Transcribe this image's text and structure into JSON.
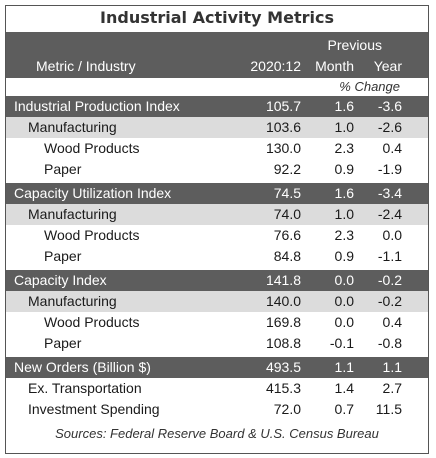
{
  "title": "Industrial Activity Metrics",
  "header": {
    "metric_col": "Metric / Industry",
    "period_col": "2020:12",
    "previous_label": "Previous",
    "month_col": "Month",
    "year_col": "Year",
    "change_note": "% Change"
  },
  "rows": [
    {
      "label": "Industrial Production Index",
      "value": "105.7",
      "month": "1.6",
      "year": "-3.6"
    },
    {
      "label": "Manufacturing",
      "value": "103.6",
      "month": "1.0",
      "year": "-2.6"
    },
    {
      "label": "Wood Products",
      "value": "130.0",
      "month": "2.3",
      "year": "0.4"
    },
    {
      "label": "Paper",
      "value": "92.2",
      "month": "0.9",
      "year": "-1.9"
    },
    {
      "label": "Capacity Utilization Index",
      "value": "74.5",
      "month": "1.6",
      "year": "-3.4"
    },
    {
      "label": "Manufacturing",
      "value": "74.0",
      "month": "1.0",
      "year": "-2.4"
    },
    {
      "label": "Wood Products",
      "value": "76.6",
      "month": "2.3",
      "year": "0.0"
    },
    {
      "label": "Paper",
      "value": "84.8",
      "month": "0.9",
      "year": "-1.1"
    },
    {
      "label": "Capacity Index",
      "value": "141.8",
      "month": "0.0",
      "year": "-0.2"
    },
    {
      "label": "Manufacturing",
      "value": "140.0",
      "month": "0.0",
      "year": "-0.2"
    },
    {
      "label": "Wood Products",
      "value": "169.8",
      "month": "0.0",
      "year": "0.4"
    },
    {
      "label": "Paper",
      "value": "108.8",
      "month": "-0.1",
      "year": "-0.8"
    },
    {
      "label": "New Orders (Billion $)",
      "value": "493.5",
      "month": "1.1",
      "year": "1.1"
    },
    {
      "label": "Ex. Transportation",
      "value": "415.3",
      "month": "1.4",
      "year": "2.7"
    },
    {
      "label": "Investment Spending",
      "value": "72.0",
      "month": "0.7",
      "year": "11.5"
    }
  ],
  "source": "Sources: Federal Reserve Board & U.S. Census Bureau"
}
